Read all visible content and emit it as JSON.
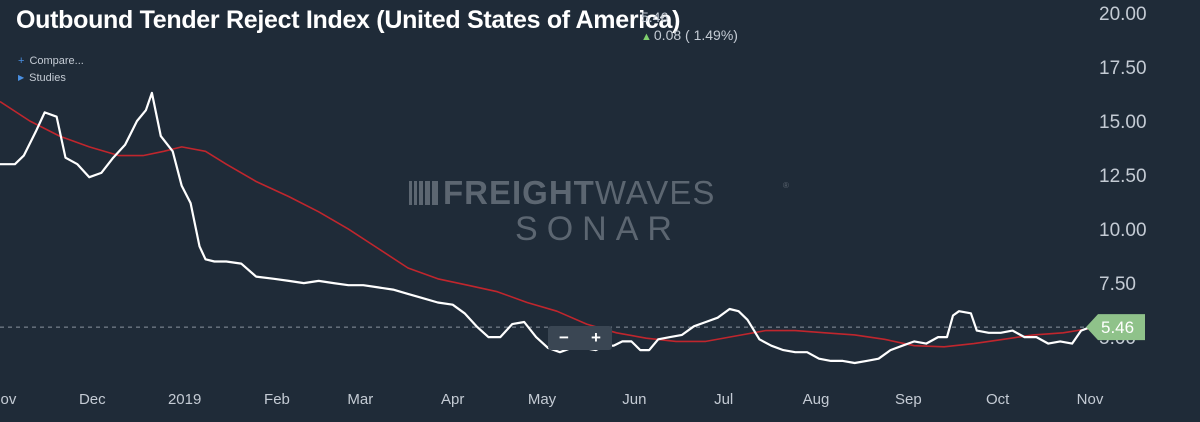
{
  "header": {
    "title": "Outbound Tender Reject Index (United States of America)",
    "last_value": "5.46",
    "change": "0.08 ( 1.49%)",
    "change_icon": "up-arrow-icon",
    "change_color": "#7fcf6d"
  },
  "menu": {
    "compare_label": "Compare...",
    "studies_label": "Studies",
    "compare_icon": "plus-icon",
    "studies_icon": "triangle-right-icon"
  },
  "watermark": {
    "line1_bold": "FREIGHT",
    "line1_light": "WAVES",
    "registered": "®",
    "line2": "SONAR"
  },
  "zoom": {
    "minus_label": "−",
    "plus_label": "+"
  },
  "price_label": "5.46",
  "colors": {
    "background": "#1f2b38",
    "main_line": "#ffffff",
    "moving_average": "#c0262d",
    "price_label_bg": "#8fc28a",
    "axis_text": "#c4cbd4"
  },
  "chart_data": {
    "type": "line",
    "title": "Outbound Tender Reject Index (United States of America)",
    "x_tick_labels": [
      "Nov",
      "Dec",
      "2019",
      "Feb",
      "Mar",
      "Apr",
      "May",
      "Jun",
      "Jul",
      "Aug",
      "Sep",
      "Oct",
      "Nov"
    ],
    "y_tick_labels": [
      "20.00",
      "17.50",
      "15.00",
      "12.50",
      "10.00",
      "7.50",
      "5.00"
    ],
    "y_ticks": [
      20,
      17.5,
      15,
      12.5,
      10,
      7.5,
      5
    ],
    "ylim": [
      3.2,
      20.6
    ],
    "xlim": [
      "2018-10-31",
      "2019-11-01"
    ],
    "grid": false,
    "y_axis_position": "right",
    "last_value_line": 5.46,
    "series": [
      {
        "role": "value",
        "color": "#ffffff",
        "points": [
          [
            "2018-10-31",
            13.0
          ],
          [
            "2018-11-05",
            13.0
          ],
          [
            "2018-11-08",
            13.4
          ],
          [
            "2018-11-12",
            14.5
          ],
          [
            "2018-11-15",
            15.4
          ],
          [
            "2018-11-19",
            15.2
          ],
          [
            "2018-11-22",
            13.3
          ],
          [
            "2018-11-26",
            13.0
          ],
          [
            "2018-11-30",
            12.4
          ],
          [
            "2018-12-04",
            12.6
          ],
          [
            "2018-12-08",
            13.3
          ],
          [
            "2018-12-12",
            13.9
          ],
          [
            "2018-12-16",
            15.0
          ],
          [
            "2018-12-19",
            15.5
          ],
          [
            "2018-12-21",
            16.3
          ],
          [
            "2018-12-24",
            14.3
          ],
          [
            "2018-12-28",
            13.6
          ],
          [
            "2018-12-31",
            12.0
          ],
          [
            "2019-01-03",
            11.2
          ],
          [
            "2019-01-06",
            9.2
          ],
          [
            "2019-01-08",
            8.6
          ],
          [
            "2019-01-11",
            8.5
          ],
          [
            "2019-01-15",
            8.5
          ],
          [
            "2019-01-20",
            8.4
          ],
          [
            "2019-01-25",
            7.8
          ],
          [
            "2019-01-31",
            7.7
          ],
          [
            "2019-02-05",
            7.6
          ],
          [
            "2019-02-10",
            7.5
          ],
          [
            "2019-02-15",
            7.6
          ],
          [
            "2019-02-20",
            7.5
          ],
          [
            "2019-02-25",
            7.4
          ],
          [
            "2019-03-02",
            7.4
          ],
          [
            "2019-03-07",
            7.3
          ],
          [
            "2019-03-12",
            7.2
          ],
          [
            "2019-03-17",
            7.0
          ],
          [
            "2019-03-22",
            6.8
          ],
          [
            "2019-03-27",
            6.6
          ],
          [
            "2019-04-01",
            6.5
          ],
          [
            "2019-04-05",
            6.1
          ],
          [
            "2019-04-09",
            5.5
          ],
          [
            "2019-04-13",
            5.0
          ],
          [
            "2019-04-17",
            5.0
          ],
          [
            "2019-04-21",
            5.6
          ],
          [
            "2019-04-25",
            5.7
          ],
          [
            "2019-04-29",
            5.0
          ],
          [
            "2019-05-03",
            4.5
          ],
          [
            "2019-05-07",
            4.3
          ],
          [
            "2019-05-11",
            4.5
          ],
          [
            "2019-05-15",
            4.5
          ],
          [
            "2019-05-19",
            4.4
          ],
          [
            "2019-05-22",
            4.6
          ],
          [
            "2019-05-25",
            4.6
          ],
          [
            "2019-05-28",
            4.8
          ],
          [
            "2019-05-31",
            4.8
          ],
          [
            "2019-06-03",
            4.4
          ],
          [
            "2019-06-06",
            4.4
          ],
          [
            "2019-06-09",
            4.9
          ],
          [
            "2019-06-13",
            5.0
          ],
          [
            "2019-06-17",
            5.1
          ],
          [
            "2019-06-21",
            5.5
          ],
          [
            "2019-06-25",
            5.7
          ],
          [
            "2019-06-29",
            5.9
          ],
          [
            "2019-07-03",
            6.3
          ],
          [
            "2019-07-06",
            6.2
          ],
          [
            "2019-07-09",
            5.8
          ],
          [
            "2019-07-13",
            4.9
          ],
          [
            "2019-07-17",
            4.6
          ],
          [
            "2019-07-21",
            4.4
          ],
          [
            "2019-07-25",
            4.3
          ],
          [
            "2019-07-29",
            4.3
          ],
          [
            "2019-08-02",
            4.0
          ],
          [
            "2019-08-06",
            3.9
          ],
          [
            "2019-08-10",
            3.9
          ],
          [
            "2019-08-14",
            3.8
          ],
          [
            "2019-08-18",
            3.9
          ],
          [
            "2019-08-22",
            4.0
          ],
          [
            "2019-08-26",
            4.4
          ],
          [
            "2019-08-30",
            4.6
          ],
          [
            "2019-09-03",
            4.8
          ],
          [
            "2019-09-07",
            4.7
          ],
          [
            "2019-09-11",
            5.0
          ],
          [
            "2019-09-14",
            5.0
          ],
          [
            "2019-09-16",
            6.0
          ],
          [
            "2019-09-18",
            6.2
          ],
          [
            "2019-09-22",
            6.1
          ],
          [
            "2019-09-24",
            5.3
          ],
          [
            "2019-09-28",
            5.2
          ],
          [
            "2019-10-02",
            5.2
          ],
          [
            "2019-10-06",
            5.3
          ],
          [
            "2019-10-10",
            5.0
          ],
          [
            "2019-10-14",
            5.0
          ],
          [
            "2019-10-18",
            4.7
          ],
          [
            "2019-10-22",
            4.8
          ],
          [
            "2019-10-26",
            4.7
          ],
          [
            "2019-10-29",
            5.3
          ],
          [
            "2019-11-01",
            5.46
          ]
        ]
      },
      {
        "role": "moving-average",
        "color": "#c0262d",
        "points": [
          [
            "2018-10-31",
            15.9
          ],
          [
            "2018-11-10",
            15.0
          ],
          [
            "2018-11-20",
            14.3
          ],
          [
            "2018-11-30",
            13.8
          ],
          [
            "2018-12-10",
            13.4
          ],
          [
            "2018-12-18",
            13.4
          ],
          [
            "2018-12-25",
            13.6
          ],
          [
            "2018-12-31",
            13.8
          ],
          [
            "2019-01-08",
            13.6
          ],
          [
            "2019-01-15",
            13.0
          ],
          [
            "2019-01-25",
            12.2
          ],
          [
            "2019-02-05",
            11.5
          ],
          [
            "2019-02-15",
            10.8
          ],
          [
            "2019-02-25",
            10.0
          ],
          [
            "2019-03-07",
            9.1
          ],
          [
            "2019-03-17",
            8.2
          ],
          [
            "2019-03-27",
            7.7
          ],
          [
            "2019-04-06",
            7.4
          ],
          [
            "2019-04-16",
            7.1
          ],
          [
            "2019-04-26",
            6.6
          ],
          [
            "2019-05-06",
            6.2
          ],
          [
            "2019-05-16",
            5.6
          ],
          [
            "2019-05-26",
            5.2
          ],
          [
            "2019-06-05",
            4.95
          ],
          [
            "2019-06-15",
            4.8
          ],
          [
            "2019-06-25",
            4.8
          ],
          [
            "2019-07-05",
            5.05
          ],
          [
            "2019-07-15",
            5.3
          ],
          [
            "2019-07-25",
            5.3
          ],
          [
            "2019-08-04",
            5.2
          ],
          [
            "2019-08-14",
            5.1
          ],
          [
            "2019-08-24",
            4.9
          ],
          [
            "2019-09-03",
            4.6
          ],
          [
            "2019-09-13",
            4.55
          ],
          [
            "2019-09-23",
            4.7
          ],
          [
            "2019-10-03",
            4.9
          ],
          [
            "2019-10-13",
            5.1
          ],
          [
            "2019-10-23",
            5.2
          ],
          [
            "2019-11-01",
            5.4
          ]
        ]
      }
    ]
  }
}
